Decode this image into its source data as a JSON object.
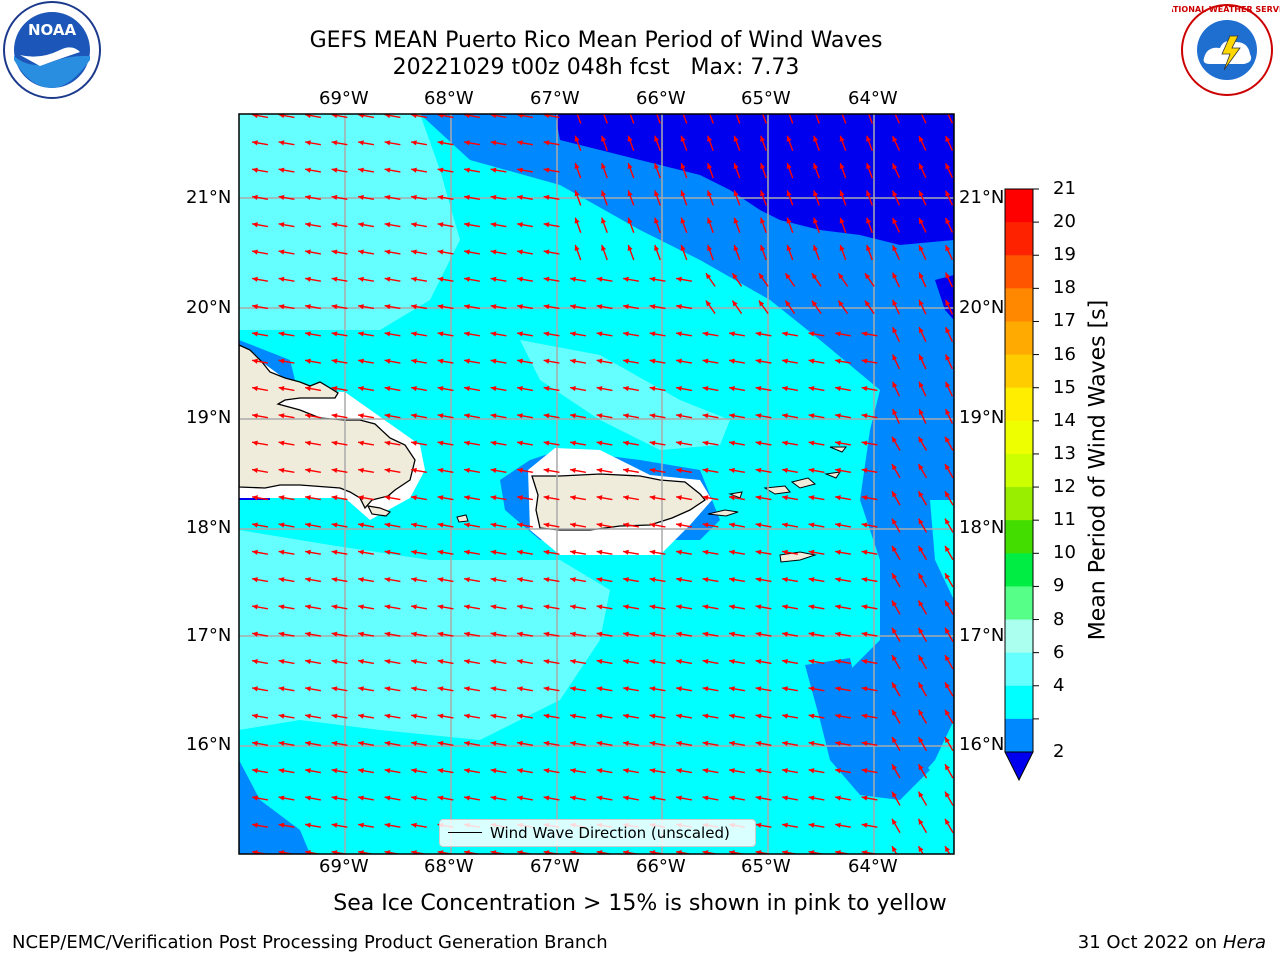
{
  "title": {
    "line1": "GEFS MEAN Puerto Rico Mean Period of Wind Waves",
    "line2": "20221029 t00z 048h fcst   Max: 7.73"
  },
  "axes": {
    "lon_labels": [
      "69°W",
      "68°W",
      "67°W",
      "66°W",
      "65°W",
      "64°W"
    ],
    "lat_labels": [
      "21°N",
      "20°N",
      "19°N",
      "18°N",
      "17°N",
      "16°N"
    ]
  },
  "colorbar": {
    "label": "Mean Period of Wind Waves [s]",
    "ticks": [
      "21",
      "20",
      "19",
      "18",
      "17",
      "16",
      "15",
      "14",
      "13",
      "12",
      "11",
      "10",
      "9",
      "8",
      "6",
      "4",
      "2"
    ],
    "colors": [
      "#ff0000",
      "#ff2200",
      "#ff5500",
      "#ff8800",
      "#ffaa00",
      "#ffcc00",
      "#ffee00",
      "#eeff00",
      "#ccff00",
      "#99ee00",
      "#44dd00",
      "#00ee44",
      "#55ff88",
      "#aaffee",
      "#66ffff",
      "#00ffff",
      "#0088ff"
    ],
    "extend_color": "#0000ee"
  },
  "legend": {
    "text": "Wind Wave Direction (unscaled)"
  },
  "notes": {
    "sea_ice": "Sea Ice Concentration > 15% is shown in pink to yellow",
    "branch": "NCEP/EMC/Verification Post Processing Product Generation Branch",
    "date": "31 Oct 2022 on ",
    "machine": "Hera"
  },
  "logos": {
    "noaa_text": "NOAA",
    "nws_text": "NATIONAL WEATHER SERVICE"
  },
  "colors": {
    "land": "#efecdc",
    "period_6_8": "#66ffff",
    "period_4_6": "#00ffff",
    "period_2_4": "#0088ff",
    "period_lt_2": "#0000ee",
    "arrow": "#ff0000"
  }
}
